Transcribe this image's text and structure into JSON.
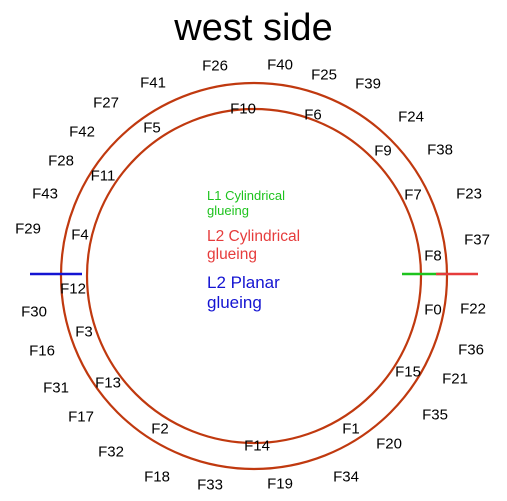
{
  "title": "west side",
  "colors": {
    "ring": "#c0390f",
    "l1_cylindrical": "#1ec31e",
    "l2_cylindrical": "#e63c3c",
    "l2_planar": "#1414d2"
  },
  "legend": {
    "l1_cylindrical": "L1 Cylindrical\nglueing",
    "l2_cylindrical": "L2 Cylindrical\nglueing",
    "l2_planar": "L2 Planar\nglueing"
  },
  "inner_labels": [
    "F0",
    "F1",
    "F2",
    "F3",
    "F4",
    "F5",
    "F6",
    "F7",
    "F8",
    "F9",
    "F10",
    "F11",
    "F12",
    "F13",
    "F14",
    "F15"
  ],
  "outer_labels": [
    "F16",
    "F17",
    "F18",
    "F19",
    "F20",
    "F21",
    "F22",
    "F23",
    "F24",
    "F25",
    "F26",
    "F27",
    "F28",
    "F29",
    "F30",
    "F31",
    "F32",
    "F33",
    "F34",
    "F35",
    "F36",
    "F37",
    "F38",
    "F39",
    "F40",
    "F41",
    "F42",
    "F43"
  ]
}
